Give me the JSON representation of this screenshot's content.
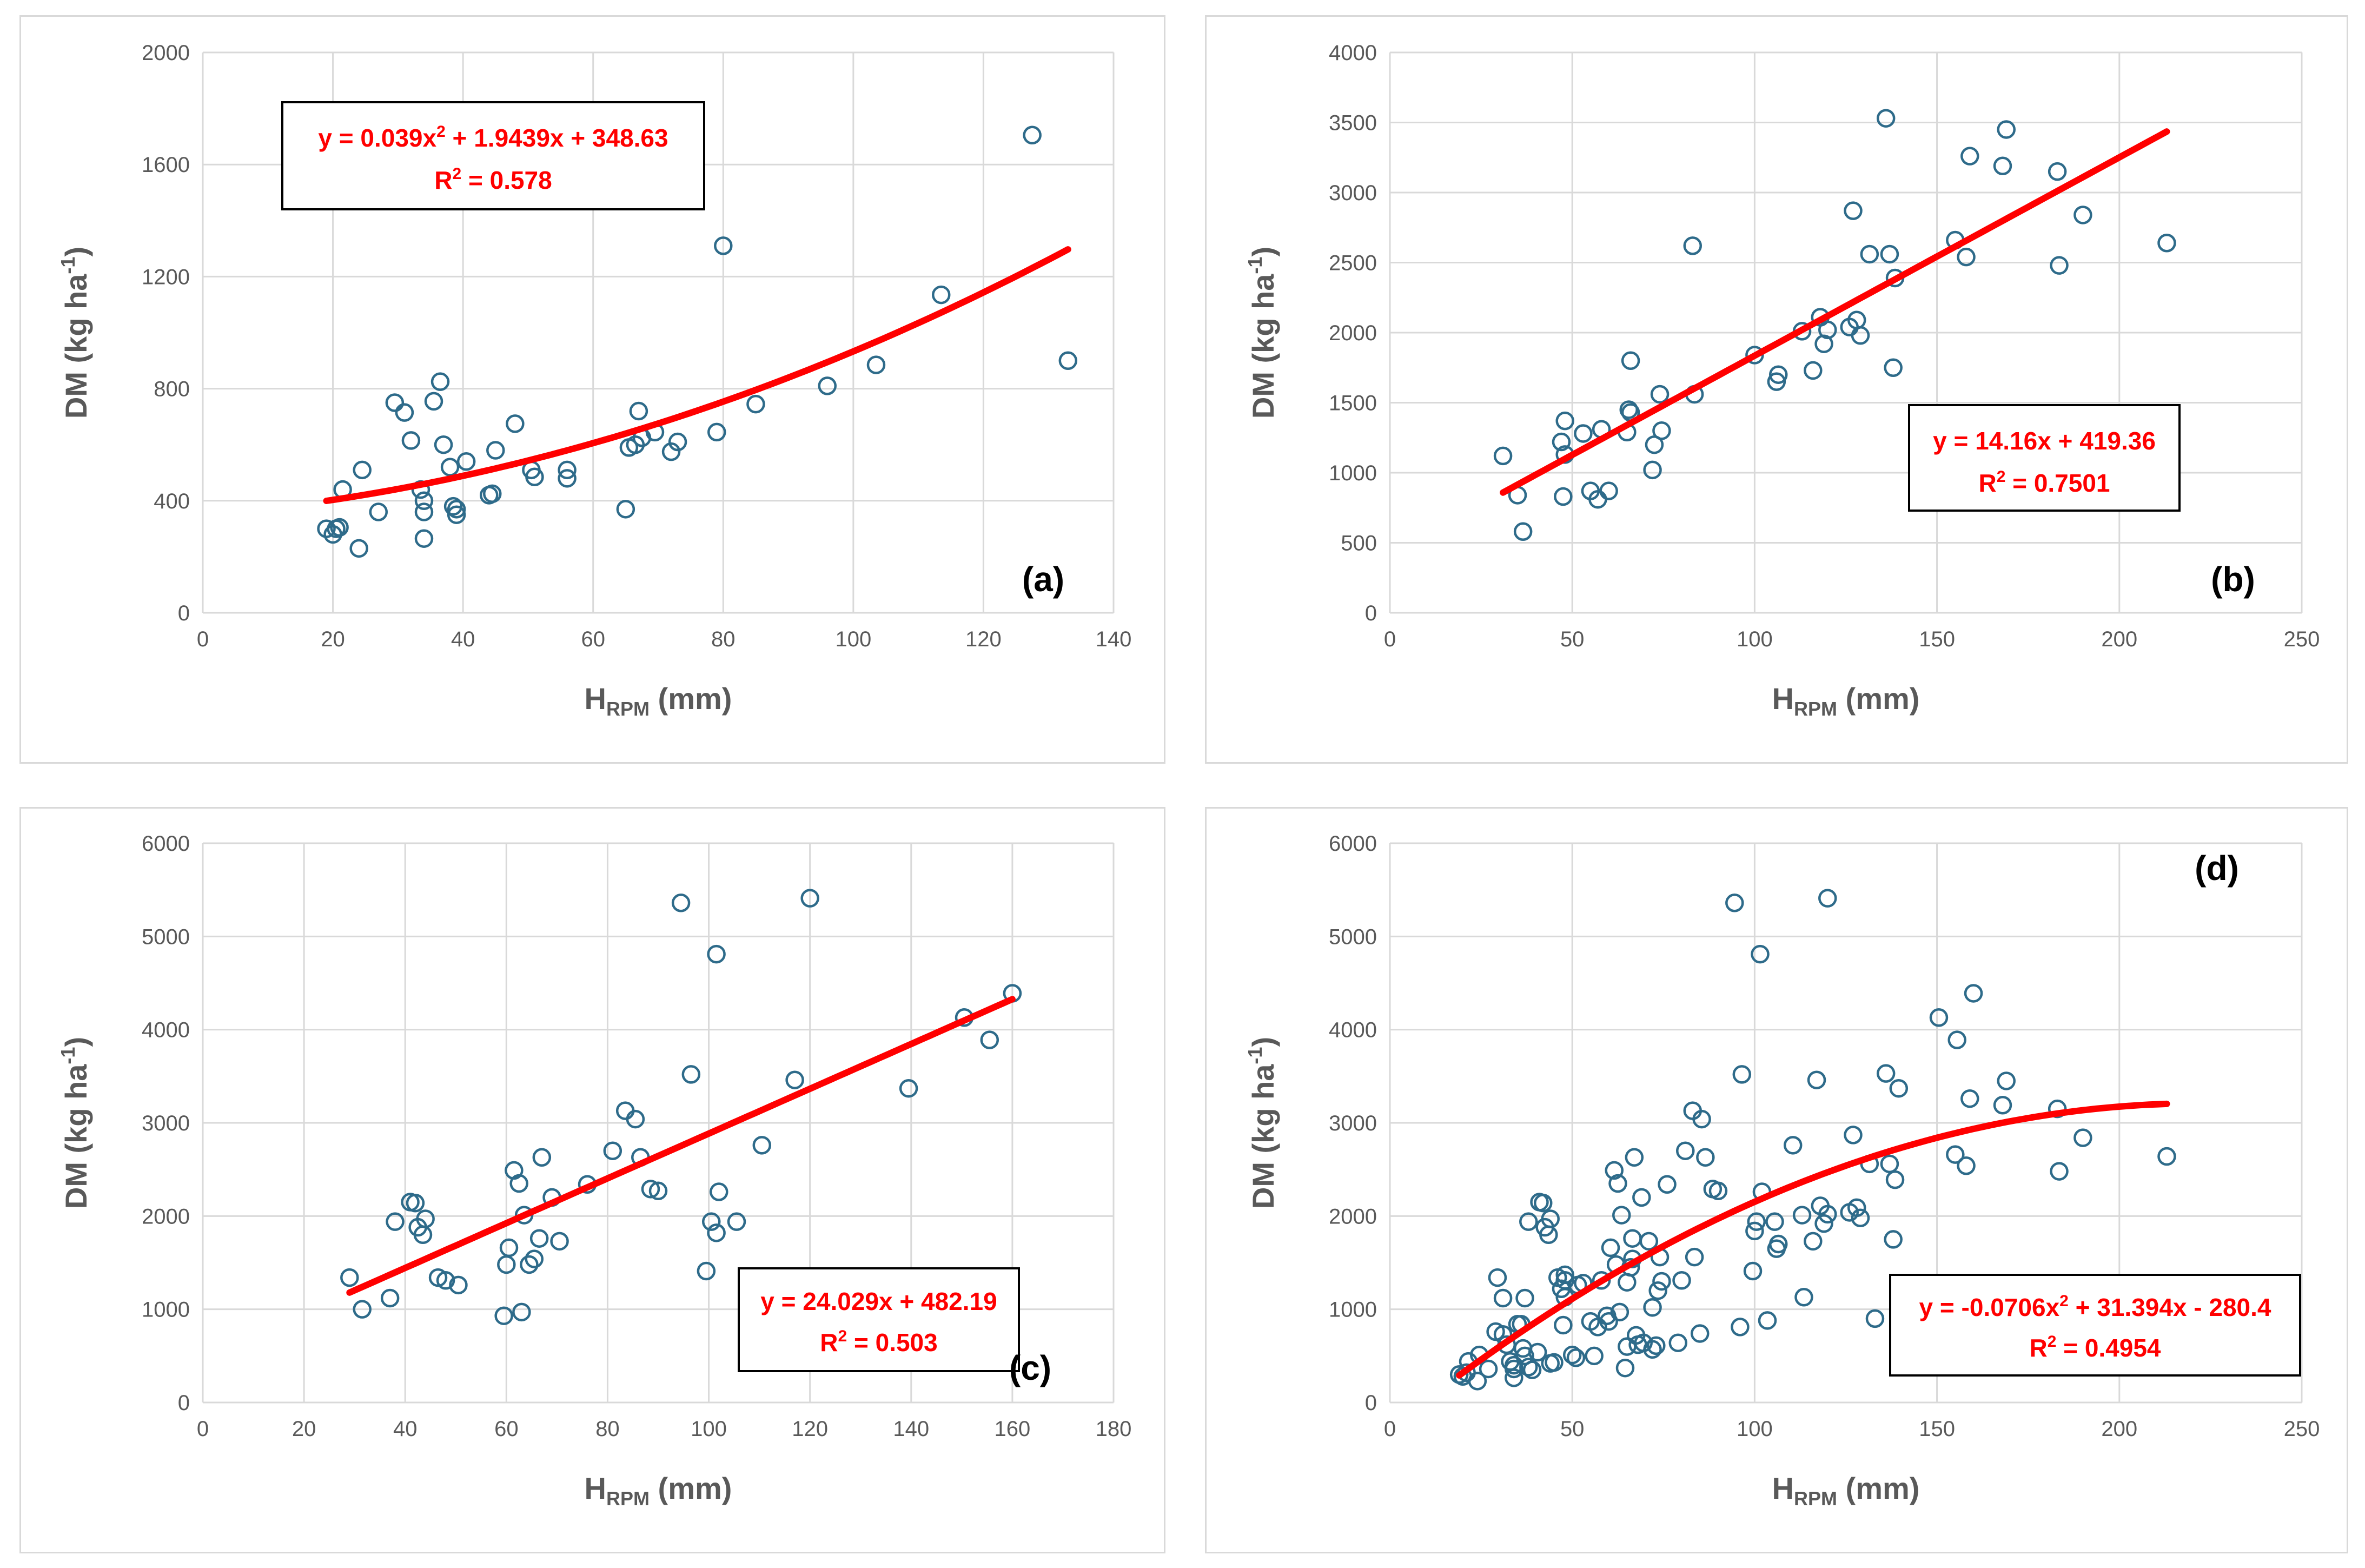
{
  "colors": {
    "points": "#2e6b8a",
    "trend": "#ff0000",
    "grid": "#d9d9d9",
    "axis_text": "#595959"
  },
  "chart_data": [
    {
      "type": "scatter",
      "panel_label": "(a)",
      "title": "",
      "xlabel": "H",
      "xlabel_sub": "RPM",
      "xlabel_unit": " (mm)",
      "ylabel": "DM (kg ha",
      "ylabel_sup": "-1",
      "ylabel_end": ")",
      "xlim": [
        0,
        140
      ],
      "xticks": [
        0,
        20,
        40,
        60,
        80,
        100,
        120,
        140
      ],
      "ylim": [
        0,
        2000
      ],
      "yticks": [
        0,
        400,
        800,
        1200,
        1600,
        2000
      ],
      "trendline": {
        "kind": "poly2",
        "a": 0.039,
        "b": 1.9439,
        "c": 348.63,
        "x_range": [
          19,
          133
        ]
      },
      "equation": {
        "pre": "y = 0.039x",
        "sup": "2",
        "post": " + 1.9439x + 348.63",
        "r2_label": "R",
        "r2_sup": "2",
        "r2_value": " = 0.578"
      },
      "points": [
        [
          19,
          300
        ],
        [
          20,
          280
        ],
        [
          20.5,
          300
        ],
        [
          21,
          305
        ],
        [
          21.5,
          440
        ],
        [
          24,
          230
        ],
        [
          24.5,
          510
        ],
        [
          27,
          360
        ],
        [
          29.5,
          750
        ],
        [
          31,
          715
        ],
        [
          32,
          615
        ],
        [
          33.5,
          440
        ],
        [
          34,
          400
        ],
        [
          34,
          360
        ],
        [
          34,
          265
        ],
        [
          35.5,
          755
        ],
        [
          36.5,
          825
        ],
        [
          37,
          600
        ],
        [
          38,
          520
        ],
        [
          38.5,
          380
        ],
        [
          39,
          370
        ],
        [
          39,
          350
        ],
        [
          40.5,
          540
        ],
        [
          44,
          420
        ],
        [
          44.5,
          425
        ],
        [
          45,
          580
        ],
        [
          48,
          675
        ],
        [
          50.5,
          510
        ],
        [
          51,
          485
        ],
        [
          56,
          510
        ],
        [
          56,
          480
        ],
        [
          65,
          370
        ],
        [
          65.5,
          590
        ],
        [
          66.5,
          600
        ],
        [
          67,
          720
        ],
        [
          67.5,
          625
        ],
        [
          69.5,
          645
        ],
        [
          72,
          575
        ],
        [
          73,
          610
        ],
        [
          79,
          645
        ],
        [
          80,
          1310
        ],
        [
          85,
          745
        ],
        [
          96,
          810
        ],
        [
          103.5,
          885
        ],
        [
          113.5,
          1135
        ],
        [
          127.5,
          1705
        ],
        [
          133,
          900
        ]
      ]
    },
    {
      "type": "scatter",
      "panel_label": "(b)",
      "title": "",
      "xlabel": "H",
      "xlabel_sub": "RPM",
      "xlabel_unit": " (mm)",
      "ylabel": "DM (kg ha",
      "ylabel_sup": "-1",
      "ylabel_end": ")",
      "xlim": [
        0,
        250
      ],
      "xticks": [
        0,
        50,
        100,
        150,
        200,
        250
      ],
      "ylim": [
        0,
        4000
      ],
      "yticks": [
        0,
        500,
        1000,
        1500,
        2000,
        2500,
        3000,
        3500,
        4000
      ],
      "trendline": {
        "kind": "linear",
        "a": 0,
        "b": 14.16,
        "c": 419.36,
        "x_range": [
          31,
          213
        ]
      },
      "equation": {
        "pre": "y = 14.16x + 419.36",
        "sup": "",
        "post": "",
        "r2_label": "R",
        "r2_sup": "2",
        "r2_value": " = 0.7501"
      },
      "points": [
        [
          31,
          1120
        ],
        [
          35,
          840
        ],
        [
          36.5,
          580
        ],
        [
          47,
          1220
        ],
        [
          47.5,
          830
        ],
        [
          48,
          1130
        ],
        [
          48,
          1370
        ],
        [
          53,
          1280
        ],
        [
          55,
          870
        ],
        [
          57,
          810
        ],
        [
          58,
          1310
        ],
        [
          60,
          870
        ],
        [
          65,
          1290
        ],
        [
          65.5,
          1450
        ],
        [
          66,
          1430
        ],
        [
          66,
          1800
        ],
        [
          72,
          1020
        ],
        [
          72.5,
          1200
        ],
        [
          74,
          1560
        ],
        [
          74.5,
          1300
        ],
        [
          83,
          2620
        ],
        [
          83.5,
          1560
        ],
        [
          100,
          1840
        ],
        [
          106,
          1650
        ],
        [
          106.5,
          1700
        ],
        [
          113,
          2010
        ],
        [
          116,
          1730
        ],
        [
          118,
          2110
        ],
        [
          119,
          1920
        ],
        [
          120,
          2020
        ],
        [
          126,
          2040
        ],
        [
          127,
          2870
        ],
        [
          128,
          2090
        ],
        [
          129,
          1980
        ],
        [
          131.5,
          2560
        ],
        [
          136,
          3530
        ],
        [
          137,
          2560
        ],
        [
          138,
          1750
        ],
        [
          138.5,
          2390
        ],
        [
          155,
          2660
        ],
        [
          158,
          2540
        ],
        [
          159,
          3260
        ],
        [
          168,
          3190
        ],
        [
          169,
          3450
        ],
        [
          183,
          3150
        ],
        [
          183.5,
          2480
        ],
        [
          190,
          2840
        ],
        [
          213,
          2640
        ]
      ]
    },
    {
      "type": "scatter",
      "panel_label": "(c)",
      "title": "",
      "xlabel": "H",
      "xlabel_sub": "RPM",
      "xlabel_unit": " (mm)",
      "ylabel": "DM (kg ha",
      "ylabel_sup": "-1",
      "ylabel_end": ")",
      "xlim": [
        0,
        180
      ],
      "xticks": [
        0,
        20,
        40,
        60,
        80,
        100,
        120,
        140,
        160,
        180
      ],
      "ylim": [
        0,
        6000
      ],
      "yticks": [
        0,
        1000,
        2000,
        3000,
        4000,
        5000,
        6000
      ],
      "trendline": {
        "kind": "linear",
        "a": 0,
        "b": 24.029,
        "c": 482.19,
        "x_range": [
          29,
          160
        ]
      },
      "equation": {
        "pre": "y = 24.029x + 482.19",
        "sup": "",
        "post": "",
        "r2_label": "R",
        "r2_sup": "2",
        "r2_value": " = 0.503"
      },
      "points": [
        [
          29,
          1340
        ],
        [
          31.5,
          1000
        ],
        [
          37,
          1120
        ],
        [
          38,
          1940
        ],
        [
          41,
          2150
        ],
        [
          42,
          2140
        ],
        [
          42.5,
          1880
        ],
        [
          43.5,
          1800
        ],
        [
          44,
          1970
        ],
        [
          46.5,
          1340
        ],
        [
          48,
          1310
        ],
        [
          50.5,
          1260
        ],
        [
          59.5,
          930
        ],
        [
          60,
          1480
        ],
        [
          60.5,
          1660
        ],
        [
          61.5,
          2490
        ],
        [
          62.5,
          2350
        ],
        [
          63,
          970
        ],
        [
          63.5,
          2010
        ],
        [
          64.5,
          1480
        ],
        [
          65.5,
          1540
        ],
        [
          66.5,
          1760
        ],
        [
          67,
          2630
        ],
        [
          69,
          2200
        ],
        [
          70.5,
          1730
        ],
        [
          76,
          2340
        ],
        [
          81,
          2700
        ],
        [
          83.5,
          3130
        ],
        [
          85.5,
          3040
        ],
        [
          86.5,
          2630
        ],
        [
          88.5,
          2290
        ],
        [
          90,
          2270
        ],
        [
          94.5,
          5360
        ],
        [
          96.5,
          3520
        ],
        [
          99.5,
          1410
        ],
        [
          100.5,
          1940
        ],
        [
          101.5,
          4810
        ],
        [
          101.5,
          1820
        ],
        [
          102,
          2260
        ],
        [
          105.5,
          1940
        ],
        [
          110.5,
          2760
        ],
        [
          117,
          3460
        ],
        [
          120,
          5410
        ],
        [
          139.5,
          3370
        ],
        [
          150.5,
          4130
        ],
        [
          155.5,
          3890
        ],
        [
          160,
          4390
        ]
      ]
    },
    {
      "type": "scatter",
      "panel_label": "(d)",
      "title": "",
      "xlabel": "H",
      "xlabel_sub": "RPM",
      "xlabel_unit": " (mm)",
      "ylabel": "DM (kg ha",
      "ylabel_sup": "-1",
      "ylabel_end": ")",
      "xlim": [
        0,
        250
      ],
      "xticks": [
        0,
        50,
        100,
        150,
        200,
        250
      ],
      "ylim": [
        0,
        6000
      ],
      "yticks": [
        0,
        1000,
        2000,
        3000,
        4000,
        5000,
        6000
      ],
      "trendline": {
        "kind": "poly2",
        "a": -0.0706,
        "b": 31.394,
        "c": -280.4,
        "x_range": [
          19,
          213
        ]
      },
      "equation": {
        "pre": "y = -0.0706x",
        "sup": "2",
        "post": " + 31.394x - 280.4",
        "r2_label": "R",
        "r2_sup": "2",
        "r2_value": " = 0.4954"
      },
      "points": [
        [
          19,
          300
        ],
        [
          20,
          280
        ],
        [
          21,
          320
        ],
        [
          21.5,
          440
        ],
        [
          24,
          230
        ],
        [
          24.5,
          510
        ],
        [
          27,
          360
        ],
        [
          29,
          760
        ],
        [
          29.5,
          1340
        ],
        [
          31,
          1120
        ],
        [
          31,
          730
        ],
        [
          32,
          620
        ],
        [
          33,
          440
        ],
        [
          34,
          400
        ],
        [
          34,
          360
        ],
        [
          34,
          265
        ],
        [
          35,
          840
        ],
        [
          36,
          840
        ],
        [
          36.5,
          580
        ],
        [
          37,
          500
        ],
        [
          37,
          1120
        ],
        [
          38,
          1940
        ],
        [
          38,
          380
        ],
        [
          39,
          350
        ],
        [
          40.5,
          540
        ],
        [
          41,
          2150
        ],
        [
          42,
          2140
        ],
        [
          42.5,
          1880
        ],
        [
          43.5,
          1800
        ],
        [
          44,
          1970
        ],
        [
          44,
          420
        ],
        [
          45,
          430
        ],
        [
          46,
          1340
        ],
        [
          47,
          1220
        ],
        [
          47.5,
          830
        ],
        [
          48,
          1310
        ],
        [
          48,
          1130
        ],
        [
          48,
          1370
        ],
        [
          50,
          510
        ],
        [
          51,
          480
        ],
        [
          51.5,
          1260
        ],
        [
          53,
          1280
        ],
        [
          55,
          870
        ],
        [
          56,
          500
        ],
        [
          57,
          810
        ],
        [
          58,
          1310
        ],
        [
          59.5,
          930
        ],
        [
          60,
          870
        ],
        [
          60.5,
          1660
        ],
        [
          61.5,
          2490
        ],
        [
          62,
          1480
        ],
        [
          62.5,
          2350
        ],
        [
          63,
          970
        ],
        [
          63.5,
          2010
        ],
        [
          64.5,
          370
        ],
        [
          65,
          1290
        ],
        [
          65,
          600
        ],
        [
          66,
          1450
        ],
        [
          66.5,
          1540
        ],
        [
          66.5,
          1760
        ],
        [
          67,
          2630
        ],
        [
          67.5,
          720
        ],
        [
          68,
          620
        ],
        [
          69,
          2200
        ],
        [
          69.5,
          640
        ],
        [
          71,
          1730
        ],
        [
          72,
          1020
        ],
        [
          72,
          570
        ],
        [
          73,
          610
        ],
        [
          73.5,
          1200
        ],
        [
          74,
          1560
        ],
        [
          74.5,
          1300
        ],
        [
          76,
          2340
        ],
        [
          79,
          640
        ],
        [
          80,
          1310
        ],
        [
          81,
          2700
        ],
        [
          83,
          3130
        ],
        [
          83.5,
          1560
        ],
        [
          85,
          740
        ],
        [
          85.5,
          3040
        ],
        [
          86.5,
          2630
        ],
        [
          88.5,
          2290
        ],
        [
          90,
          2270
        ],
        [
          94.5,
          5360
        ],
        [
          96,
          810
        ],
        [
          96.5,
          3520
        ],
        [
          99.5,
          1410
        ],
        [
          100,
          1840
        ],
        [
          100.5,
          1940
        ],
        [
          101.5,
          4810
        ],
        [
          102,
          2260
        ],
        [
          103.5,
          880
        ],
        [
          105.5,
          1940
        ],
        [
          106,
          1650
        ],
        [
          106.5,
          1700
        ],
        [
          110.5,
          2760
        ],
        [
          113,
          2010
        ],
        [
          113.5,
          1130
        ],
        [
          116,
          1730
        ],
        [
          117,
          3460
        ],
        [
          118,
          2110
        ],
        [
          119,
          1920
        ],
        [
          120,
          5410
        ],
        [
          120,
          2020
        ],
        [
          126,
          2040
        ],
        [
          127,
          2870
        ],
        [
          128,
          2090
        ],
        [
          129,
          1980
        ],
        [
          131.5,
          2560
        ],
        [
          133,
          900
        ],
        [
          136,
          3530
        ],
        [
          137,
          2560
        ],
        [
          138,
          1750
        ],
        [
          138.5,
          2390
        ],
        [
          139.5,
          3370
        ],
        [
          150.5,
          4130
        ],
        [
          155,
          2660
        ],
        [
          155.5,
          3890
        ],
        [
          158,
          2540
        ],
        [
          159,
          3260
        ],
        [
          160,
          4390
        ],
        [
          168,
          3190
        ],
        [
          169,
          3450
        ],
        [
          183,
          3150
        ],
        [
          183.5,
          2480
        ],
        [
          190,
          2840
        ],
        [
          213,
          2640
        ]
      ]
    }
  ]
}
